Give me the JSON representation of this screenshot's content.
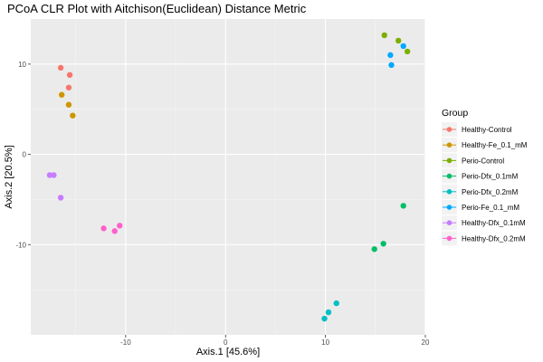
{
  "chart_data": {
    "type": "scatter",
    "title": "PCoA CLR Plot with Aitchison(Euclidean) Distance Metric",
    "xlabel": "Axis.1   [45.6%]",
    "ylabel": "Axis.2   [20.5%]",
    "xlim": [
      -19.5,
      20
    ],
    "ylim": [
      -20,
      15
    ],
    "xticks": [
      -10,
      0,
      10,
      20
    ],
    "yticks": [
      -10,
      0,
      10
    ],
    "grid": true,
    "legend": {
      "title": "Group",
      "position": "right"
    },
    "series": [
      {
        "name": "Healthy-Control",
        "color": "#F8766D",
        "points": [
          [
            -16.5,
            9.6
          ],
          [
            -15.6,
            8.8
          ],
          [
            -15.7,
            7.4
          ]
        ]
      },
      {
        "name": "Healthy-Fe_0.1_mM",
        "color": "#CD9600",
        "points": [
          [
            -16.4,
            6.6
          ],
          [
            -15.7,
            5.5
          ],
          [
            -15.3,
            4.3
          ]
        ]
      },
      {
        "name": "Perio-Control",
        "color": "#7CAE00",
        "points": [
          [
            15.9,
            13.2
          ],
          [
            17.3,
            12.6
          ],
          [
            18.2,
            11.4
          ]
        ]
      },
      {
        "name": "Perio-Dfx_0.1mM",
        "color": "#00BE67",
        "points": [
          [
            17.8,
            -5.7
          ],
          [
            15.8,
            -9.9
          ],
          [
            14.9,
            -10.5
          ]
        ]
      },
      {
        "name": "Perio-Dfx_0.2mM",
        "color": "#00BFC4",
        "points": [
          [
            11.1,
            -16.5
          ],
          [
            10.3,
            -17.5
          ],
          [
            9.9,
            -18.2
          ]
        ]
      },
      {
        "name": "Perio-Fe_0.1_mM",
        "color": "#00A9FF",
        "points": [
          [
            17.8,
            12.0
          ],
          [
            16.5,
            11.0
          ],
          [
            16.6,
            9.9
          ]
        ]
      },
      {
        "name": "Healthy-Dfx_0.1mM",
        "color": "#C77CFF",
        "points": [
          [
            -17.6,
            -2.3
          ],
          [
            -17.2,
            -2.3
          ],
          [
            -16.5,
            -4.8
          ]
        ]
      },
      {
        "name": "Healthy-Dfx_0.2mM",
        "color": "#FF61CC",
        "points": [
          [
            -10.6,
            -7.9
          ],
          [
            -12.2,
            -8.2
          ],
          [
            -11.1,
            -8.5
          ]
        ]
      }
    ]
  }
}
